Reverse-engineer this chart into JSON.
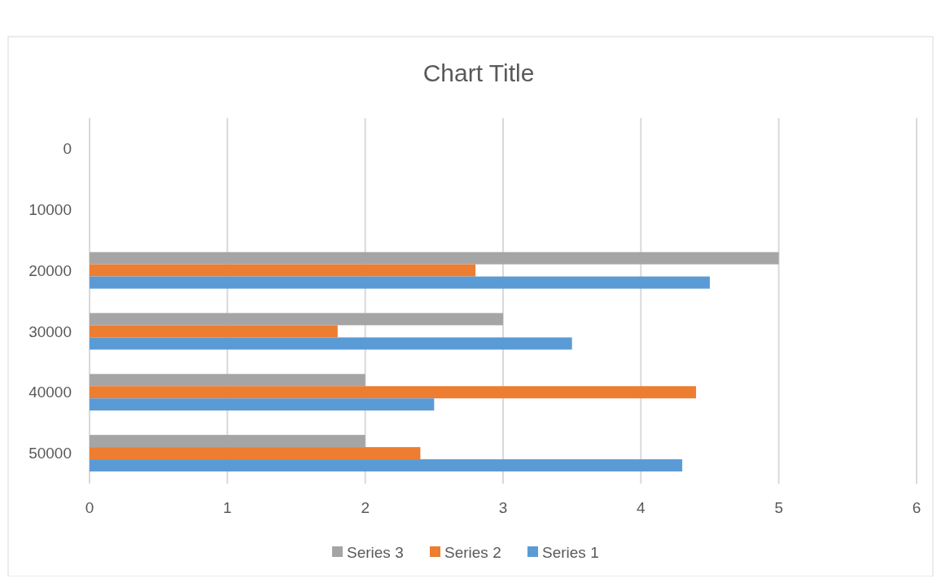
{
  "chart_data": {
    "type": "bar",
    "orientation": "horizontal",
    "title": "Chart Title",
    "categories": [
      "0",
      "10000",
      "20000",
      "30000",
      "40000",
      "50000"
    ],
    "series": [
      {
        "name": "Series 3",
        "color": "#a5a5a5",
        "values": [
          null,
          null,
          5,
          3,
          2,
          2
        ]
      },
      {
        "name": "Series 2",
        "color": "#ed7d31",
        "values": [
          null,
          null,
          2.8,
          1.8,
          4.4,
          2.4
        ]
      },
      {
        "name": "Series 1",
        "color": "#5b9bd5",
        "values": [
          null,
          null,
          4.5,
          3.5,
          2.5,
          4.3
        ]
      }
    ],
    "xlim": [
      0,
      6
    ],
    "xticks": [
      0,
      1,
      2,
      3,
      4,
      5,
      6
    ],
    "grid": "x",
    "legend": "bottom"
  }
}
